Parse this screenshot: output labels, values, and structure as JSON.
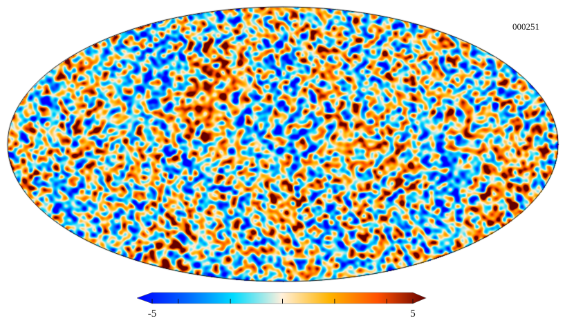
{
  "map": {
    "projection": "mollweide",
    "label": "000251",
    "colorbar": {
      "min": -5,
      "max": 5,
      "min_label": "-5",
      "max_label": "5",
      "ticks": [
        -5,
        -4,
        -2,
        0,
        2,
        4,
        5
      ],
      "colormap": [
        "#0000ff",
        "#0062ff",
        "#00dcff",
        "#fff0dc",
        "#ffb400",
        "#ff5000",
        "#640000"
      ]
    }
  }
}
